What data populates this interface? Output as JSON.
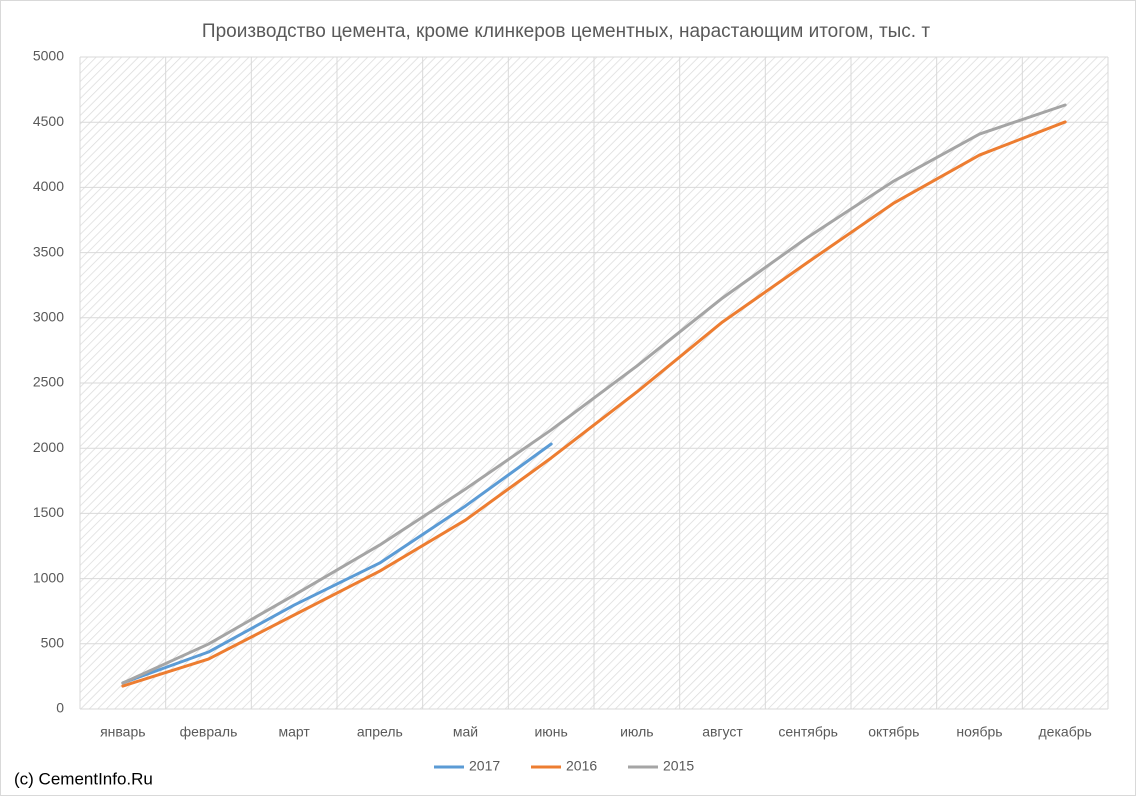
{
  "chart_data": {
    "type": "line",
    "title": "Производство цемента, кроме клинкеров цементных, нарастающим итогом, тыс. т",
    "footer": "(c) CementInfo.Ru",
    "categories": [
      "январь",
      "февраль",
      "март",
      "апрель",
      "май",
      "июнь",
      "июль",
      "август",
      "сентябрь",
      "октябрь",
      "ноябрь",
      "декабрь"
    ],
    "series": [
      {
        "name": "2017",
        "color": "#5b9bd5",
        "values": [
          200,
          437,
          797,
          1120,
          1557,
          2032,
          null,
          null,
          null,
          null,
          null,
          null
        ]
      },
      {
        "name": "2016",
        "color": "#ed7d31",
        "values": [
          176,
          383,
          721,
          1058,
          1449,
          1925,
          2431,
          2968,
          3428,
          3880,
          4248,
          4502
        ]
      },
      {
        "name": "2015",
        "color": "#a5a5a5",
        "values": [
          199,
          498,
          874,
          1258,
          1687,
          2140,
          2630,
          3152,
          3620,
          4049,
          4409,
          4632
        ]
      }
    ],
    "ylim": [
      0,
      5000
    ],
    "yticks": [
      0,
      500,
      1000,
      1500,
      2000,
      2500,
      3000,
      3500,
      4000,
      4500,
      5000
    ],
    "grid": true,
    "legend": "bottom"
  }
}
